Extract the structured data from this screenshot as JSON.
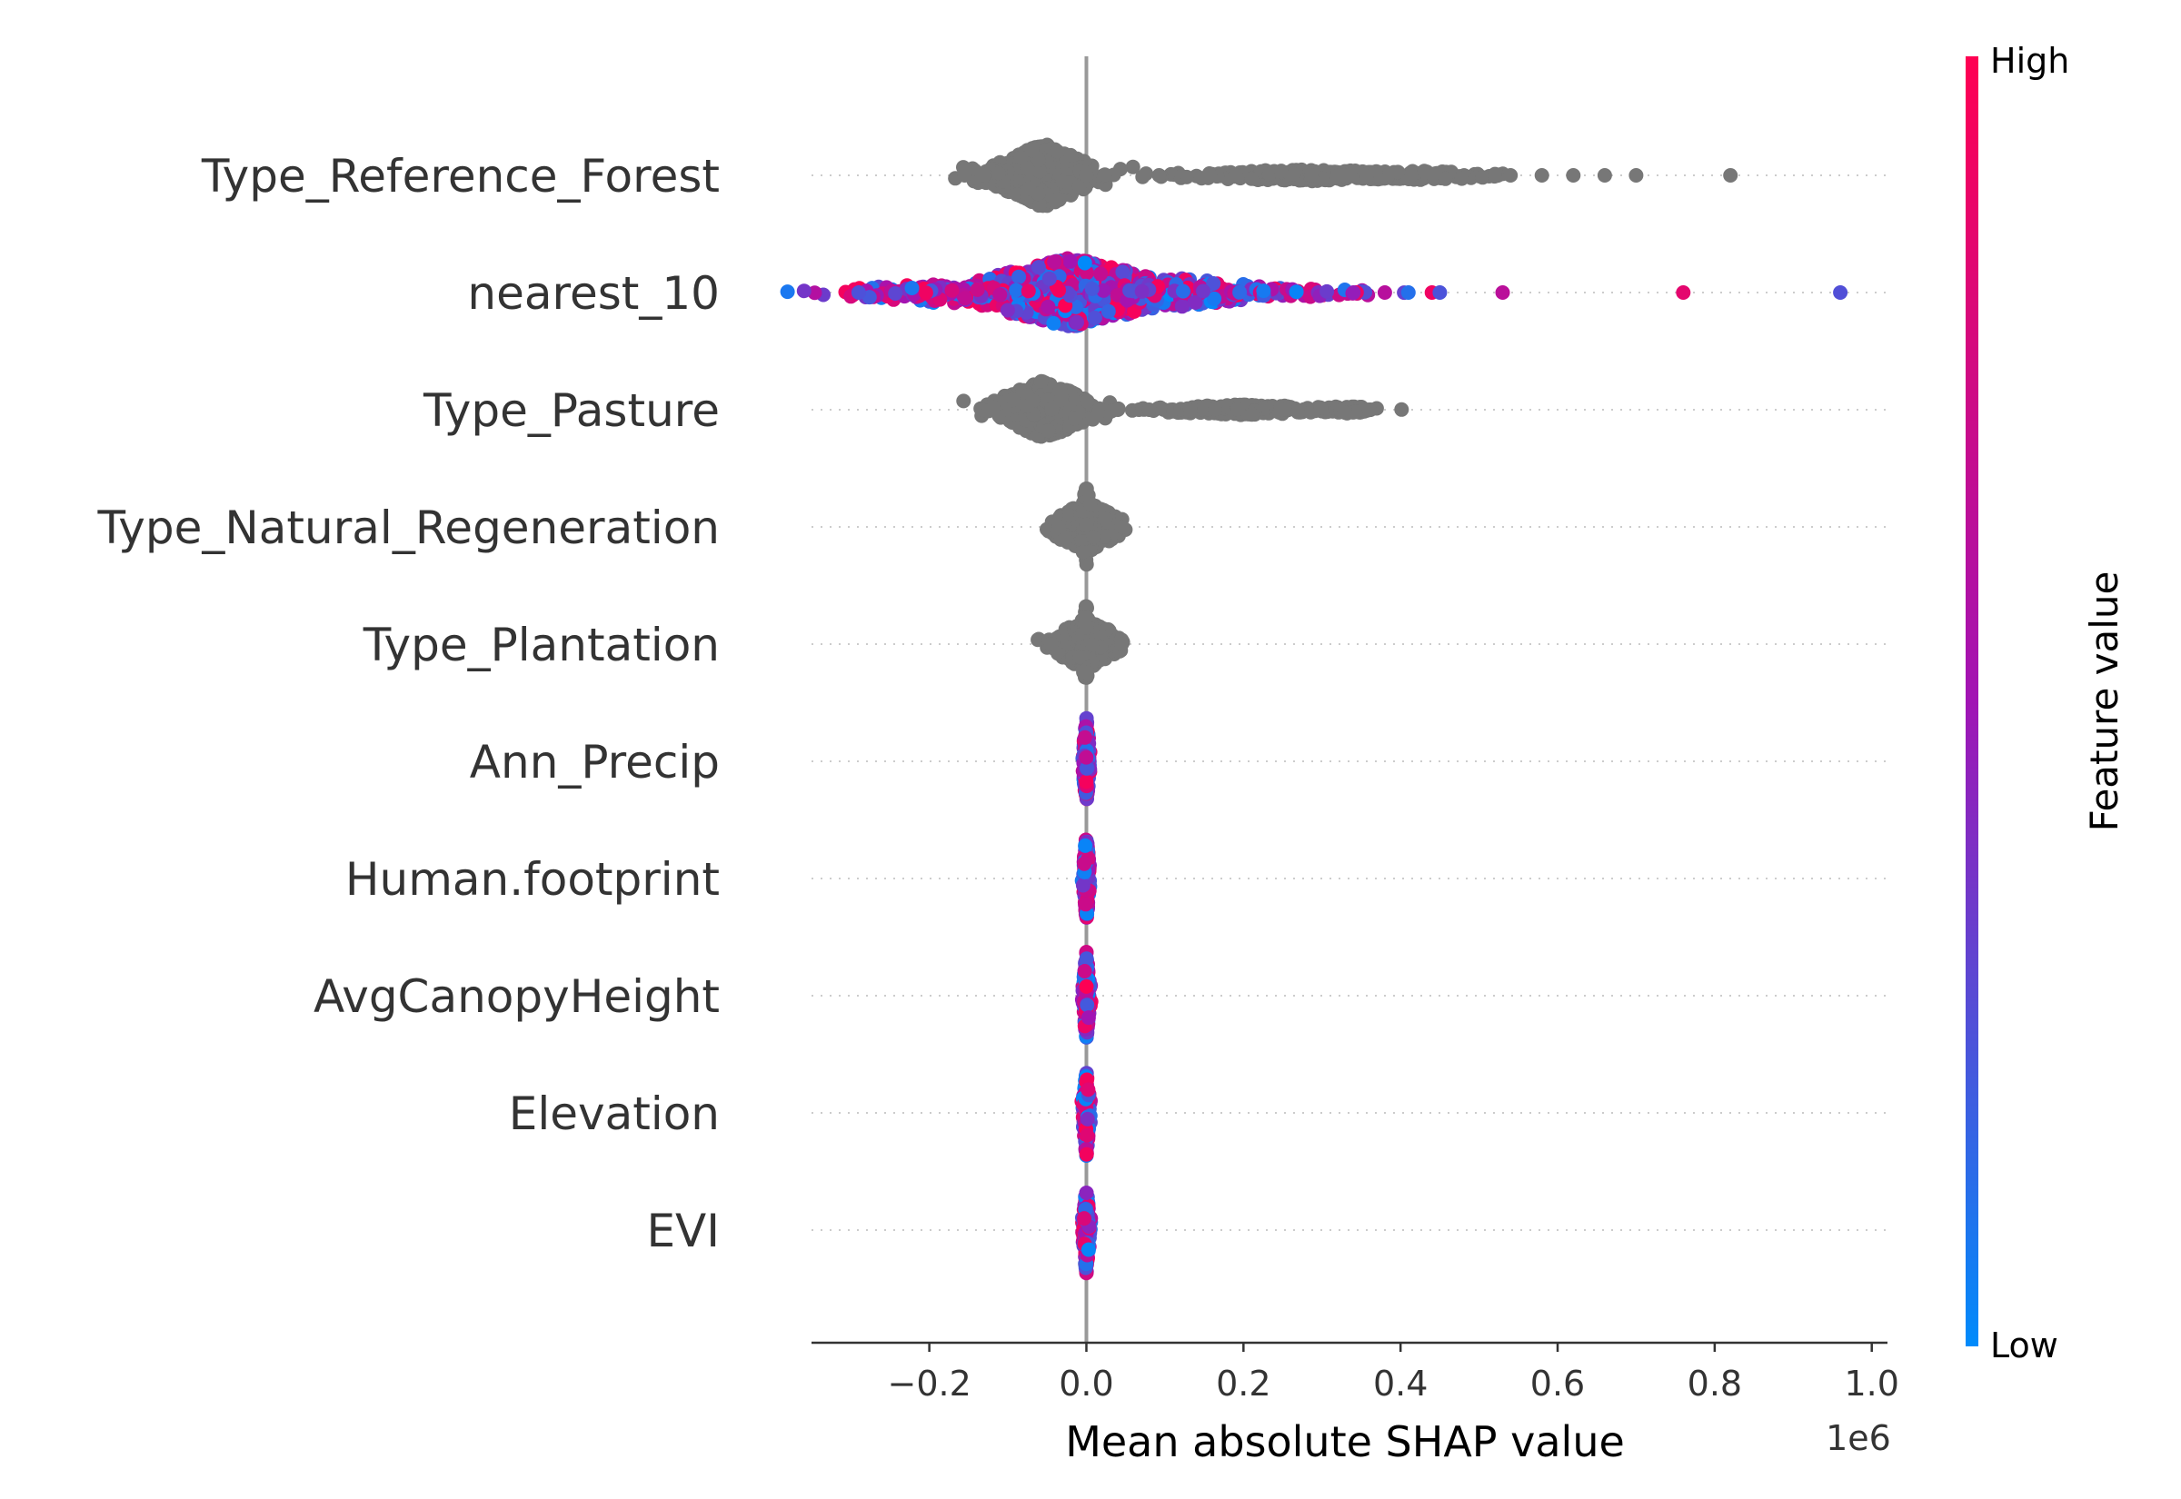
{
  "chart_data": {
    "type": "scatter",
    "subtype": "beeswarm",
    "xlabel": "Mean absolute SHAP value",
    "x_offset_label": "1e6",
    "xlim": [
      -0.35,
      1.02
    ],
    "xticks": [
      -0.2,
      0.0,
      0.2,
      0.4,
      0.6,
      0.8,
      1.0
    ],
    "xtick_labels": [
      "−0.2",
      "0.0",
      "0.2",
      "0.4",
      "0.6",
      "0.8",
      "1.0"
    ],
    "grid": false,
    "colorbar": {
      "title": "Feature value",
      "high_label": "High",
      "low_label": "Low",
      "high_color": "#ff0052",
      "mid_color": "#a114b4",
      "low_color": "#008bfb"
    },
    "uncolored_color": "#777777",
    "zero_line_color": "#999999",
    "features": [
      {
        "name": "Type_Reference_Forest",
        "colored": false,
        "clusters": [
          {
            "center": -0.055,
            "spread": 0.03,
            "count": 520,
            "height": 0.55
          },
          {
            "center": -0.13,
            "spread": 0.025,
            "count": 20,
            "height": 0.15
          },
          {
            "center": 0.28,
            "spread": 0.09,
            "count": 260,
            "height": 0.1
          },
          {
            "center": 0.43,
            "spread": 0.06,
            "count": 60,
            "height": 0.08
          }
        ],
        "outliers": [
          -0.155,
          0.0,
          0.19,
          0.52,
          0.54,
          0.58,
          0.62,
          0.66,
          0.7,
          0.82
        ]
      },
      {
        "name": "nearest_10",
        "colored": true,
        "clusters": [
          {
            "center": -0.02,
            "spread": 0.06,
            "count": 700,
            "height": 0.6
          },
          {
            "center": -0.2,
            "spread": 0.06,
            "count": 120,
            "height": 0.15
          },
          {
            "center": 0.12,
            "spread": 0.06,
            "count": 140,
            "height": 0.25
          },
          {
            "center": 0.27,
            "spread": 0.06,
            "count": 40,
            "height": 0.08
          }
        ],
        "outliers": [
          -0.29,
          0.34,
          0.38,
          0.41,
          0.44,
          0.45,
          0.53,
          0.76,
          0.96
        ]
      },
      {
        "name": "Type_Pasture",
        "colored": false,
        "clusters": [
          {
            "center": -0.055,
            "spread": 0.03,
            "count": 420,
            "height": 0.5
          },
          {
            "center": 0.2,
            "spread": 0.06,
            "count": 180,
            "height": 0.09
          },
          {
            "center": 0.33,
            "spread": 0.02,
            "count": 40,
            "height": 0.07
          }
        ],
        "outliers": [
          0.04,
          0.08,
          0.36
        ]
      },
      {
        "name": "Type_Natural_Regeneration",
        "colored": false,
        "clusters": [
          {
            "center": 0.0,
            "spread": 0.02,
            "count": 260,
            "height": 0.45
          },
          {
            "center": 0.0,
            "spread": 0.004,
            "count": 60,
            "height": 0.7
          }
        ],
        "outliers": [
          -0.035,
          0.045
        ]
      },
      {
        "name": "Type_Plantation",
        "colored": false,
        "clusters": [
          {
            "center": 0.0,
            "spread": 0.02,
            "count": 260,
            "height": 0.45
          },
          {
            "center": 0.0,
            "spread": 0.004,
            "count": 60,
            "height": 0.7
          }
        ],
        "outliers": [
          -0.045,
          0.045
        ]
      },
      {
        "name": "Ann_Precip",
        "colored": true,
        "clusters": [
          {
            "center": 0.0,
            "spread": 0.002,
            "count": 160,
            "height": 0.75
          }
        ],
        "outliers": []
      },
      {
        "name": "Human.footprint",
        "colored": true,
        "clusters": [
          {
            "center": 0.0,
            "spread": 0.002,
            "count": 160,
            "height": 0.75
          }
        ],
        "outliers": []
      },
      {
        "name": "AvgCanopyHeight",
        "colored": true,
        "clusters": [
          {
            "center": 0.0,
            "spread": 0.002,
            "count": 160,
            "height": 0.75
          }
        ],
        "outliers": []
      },
      {
        "name": "Elevation",
        "colored": true,
        "clusters": [
          {
            "center": 0.0,
            "spread": 0.002,
            "count": 160,
            "height": 0.75
          }
        ],
        "outliers": []
      },
      {
        "name": "EVI",
        "colored": true,
        "clusters": [
          {
            "center": 0.0,
            "spread": 0.002,
            "count": 160,
            "height": 0.75
          }
        ],
        "outliers": []
      }
    ]
  }
}
